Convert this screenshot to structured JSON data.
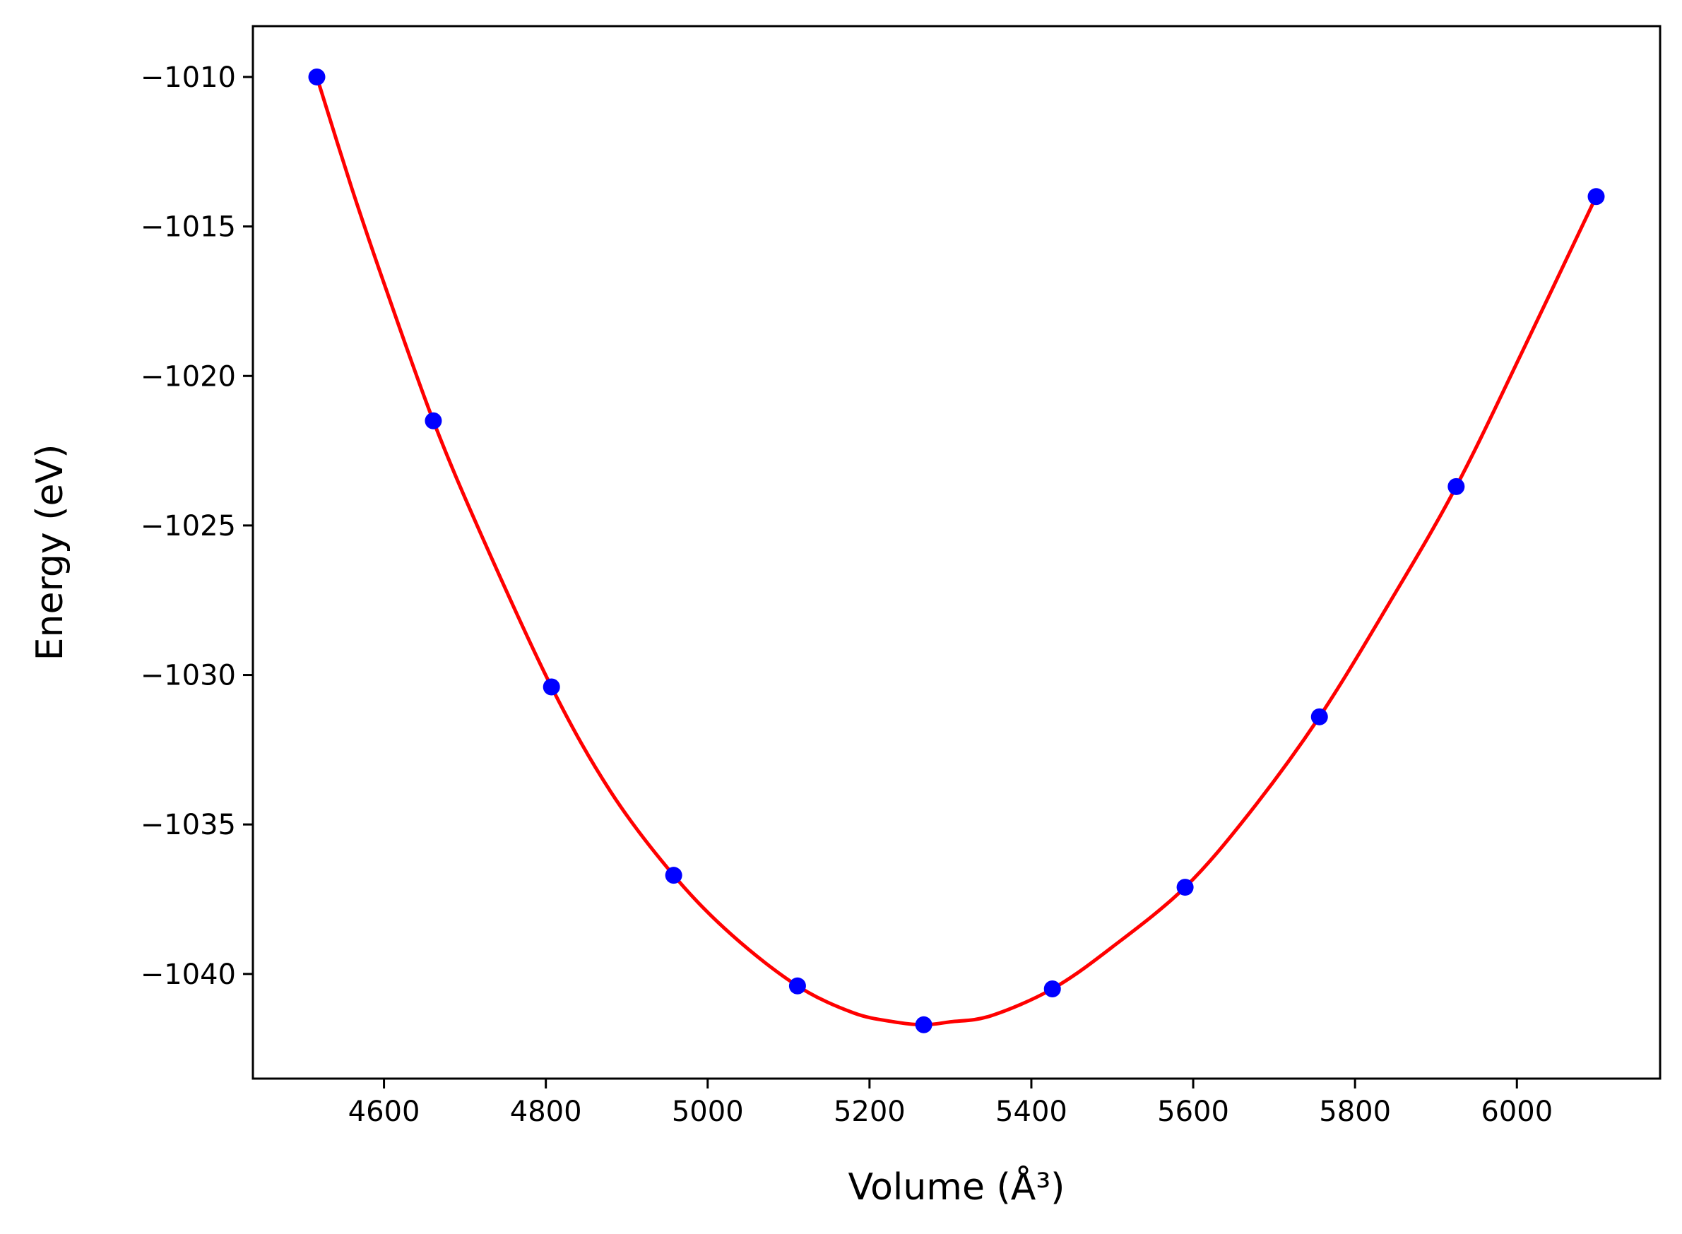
{
  "chart_data": {
    "type": "scatter",
    "xlabel": "Volume (Å³)",
    "ylabel": "Energy (eV)",
    "xlim": [
      4438,
      6177
    ],
    "ylim": [
      -1043.5,
      -1008.3
    ],
    "x_ticks": [
      4600,
      4800,
      5000,
      5200,
      5400,
      5600,
      5800,
      6000
    ],
    "y_ticks": [
      -1010,
      -1015,
      -1020,
      -1025,
      -1030,
      -1035,
      -1040
    ],
    "x_tick_labels": [
      "4600",
      "4800",
      "5000",
      "5200",
      "5400",
      "5600",
      "5800",
      "6000"
    ],
    "y_tick_labels": [
      "−1010",
      "−1015",
      "−1020",
      "−1025",
      "−1030",
      "−1035",
      "−1040"
    ],
    "grid": false,
    "series": [
      {
        "kind": "points",
        "color": "#0000ff",
        "x": [
          4517,
          4661,
          4807,
          4958,
          5111,
          5267,
          5426,
          5590,
          5756,
          5925,
          6098
        ],
        "y": [
          -1010.0,
          -1021.5,
          -1030.4,
          -1036.7,
          -1040.4,
          -1041.7,
          -1040.5,
          -1037.1,
          -1031.4,
          -1023.7,
          -1014.0
        ]
      },
      {
        "kind": "fit-curve",
        "color": "#ff0000",
        "x": [
          4517,
          4560,
          4600,
          4661,
          4720,
          4807,
          4880,
          4958,
          5030,
          5111,
          5180,
          5230,
          5267,
          5300,
          5350,
          5426,
          5500,
          5590,
          5670,
          5756,
          5840,
          5925,
          6010,
          6098
        ],
        "y": [
          -1010.0,
          -1013.7,
          -1016.9,
          -1021.5,
          -1025.3,
          -1030.4,
          -1033.9,
          -1036.7,
          -1038.7,
          -1040.4,
          -1041.3,
          -1041.6,
          -1041.7,
          -1041.6,
          -1041.4,
          -1040.5,
          -1039.1,
          -1037.1,
          -1034.6,
          -1031.4,
          -1027.7,
          -1023.7,
          -1019.0,
          -1014.0
        ]
      }
    ]
  }
}
